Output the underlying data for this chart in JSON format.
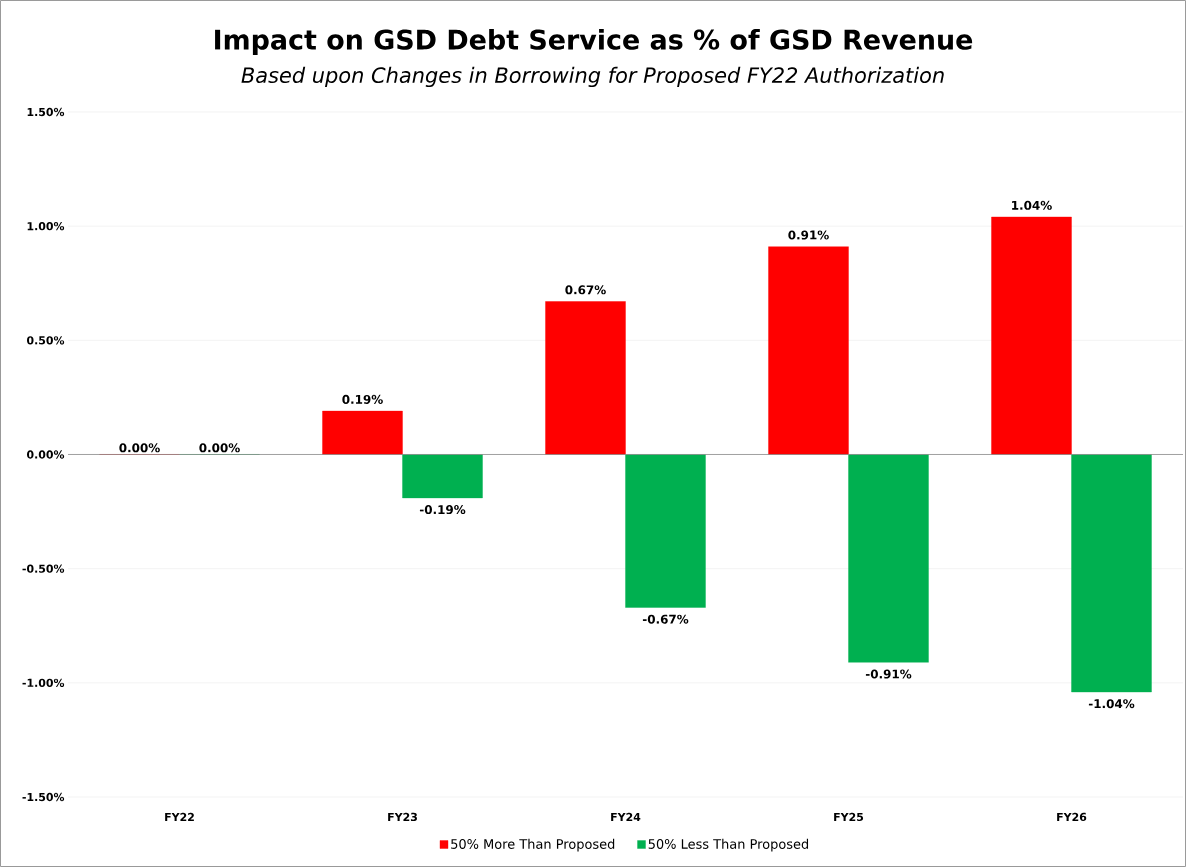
{
  "chart_data": {
    "type": "bar",
    "title": "Impact on GSD Debt Service as % of GSD Revenue",
    "subtitle": "Based upon Changes in Borrowing for Proposed FY22 Authorization",
    "categories": [
      "FY22",
      "FY23",
      "FY24",
      "FY25",
      "FY26"
    ],
    "series": [
      {
        "name": "50% More Than Proposed",
        "color": "#ff0000",
        "values": [
          0,
          0.19,
          0.67,
          0.91,
          1.04
        ],
        "value_labels": [
          "0.00%",
          "0.19%",
          "0.67%",
          "0.91%",
          "1.04%"
        ]
      },
      {
        "name": "50% Less Than Proposed",
        "color": "#00b050",
        "values": [
          0,
          -0.19,
          -0.67,
          -0.91,
          -1.04
        ],
        "value_labels": [
          "0.00%",
          "-0.19%",
          "-0.67%",
          "-0.91%",
          "-1.04%"
        ]
      }
    ],
    "ylim": [
      -1.5,
      1.5
    ],
    "yticks": [
      {
        "value": -1.5,
        "label": "-1.50%"
      },
      {
        "value": -1.0,
        "label": "-1.00%"
      },
      {
        "value": -0.5,
        "label": "-0.50%"
      },
      {
        "value": 0,
        "label": "0.00%"
      },
      {
        "value": 0.5,
        "label": "0.50%"
      },
      {
        "value": 1.0,
        "label": "1.00%"
      },
      {
        "value": 1.5,
        "label": "1.50%"
      }
    ],
    "grid": "y",
    "legend": "bottom"
  }
}
